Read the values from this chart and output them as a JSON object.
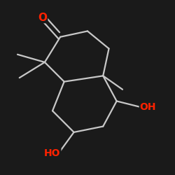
{
  "bg_color": "#1a1a1a",
  "bond_color": "#111111",
  "O_color": "#ff2200",
  "lw": 1.6,
  "font_size": 10,
  "dpi": 100,
  "figsize": [
    2.5,
    2.5
  ],
  "xlim": [
    0.5,
    9.5
  ],
  "ylim": [
    0.5,
    9.5
  ]
}
